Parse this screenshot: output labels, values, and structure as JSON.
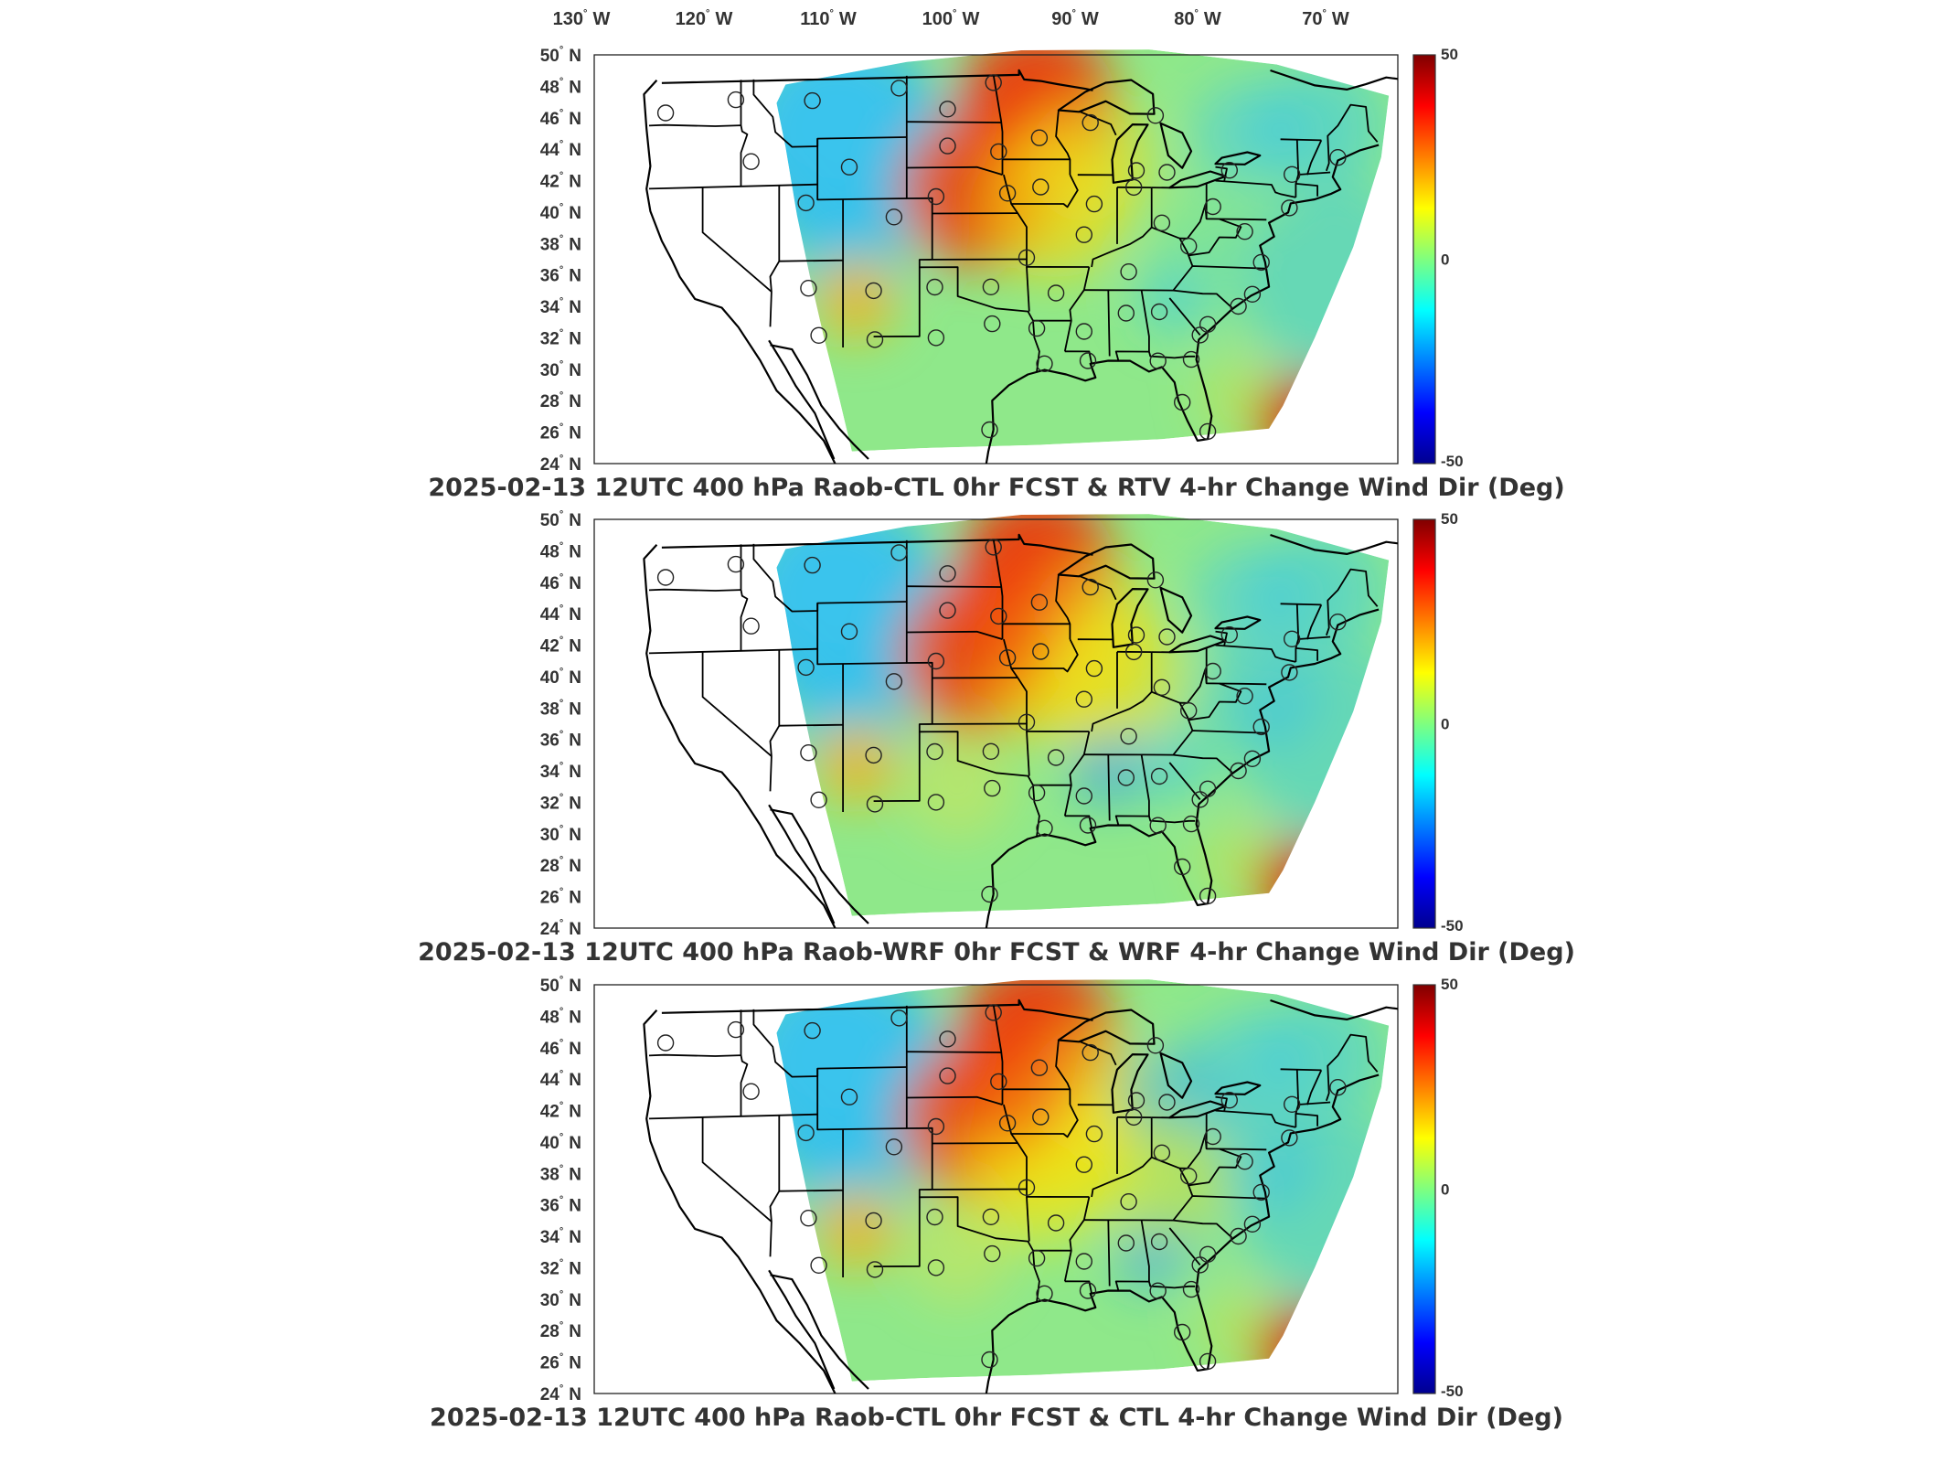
{
  "figure": {
    "lon_labels": [
      {
        "deg": "130",
        "hemi": "W"
      },
      {
        "deg": "120",
        "hemi": "W"
      },
      {
        "deg": "110",
        "hemi": "W"
      },
      {
        "deg": "100",
        "hemi": "W"
      },
      {
        "deg": "90",
        "hemi": "W"
      },
      {
        "deg": "80",
        "hemi": "W"
      },
      {
        "deg": "70",
        "hemi": "W"
      }
    ],
    "lat_labels": [
      {
        "deg": "50",
        "hemi": "N"
      },
      {
        "deg": "48",
        "hemi": "N"
      },
      {
        "deg": "46",
        "hemi": "N"
      },
      {
        "deg": "44",
        "hemi": "N"
      },
      {
        "deg": "42",
        "hemi": "N"
      },
      {
        "deg": "40",
        "hemi": "N"
      },
      {
        "deg": "38",
        "hemi": "N"
      },
      {
        "deg": "36",
        "hemi": "N"
      },
      {
        "deg": "34",
        "hemi": "N"
      },
      {
        "deg": "32",
        "hemi": "N"
      },
      {
        "deg": "30",
        "hemi": "N"
      },
      {
        "deg": "28",
        "hemi": "N"
      },
      {
        "deg": "26",
        "hemi": "N"
      },
      {
        "deg": "24",
        "hemi": "N"
      }
    ],
    "colorbar": {
      "max_label": "50",
      "mid_label": "0",
      "min_label": "-50",
      "colormap": [
        "#00008f",
        "#0000ff",
        "#00ffff",
        "#7fff7f",
        "#ffff00",
        "#ff0000",
        "#800000"
      ]
    },
    "panels": [
      {
        "title": "2025-02-13 12UTC 400 hPa Raob-CTL 0hr FCST & RTV 4-hr Change Wind Dir (Deg)"
      },
      {
        "title": "2025-02-13 12UTC 400 hPa Raob-WRF 0hr FCST & WRF 4-hr Change Wind Dir (Deg)"
      },
      {
        "title": "2025-02-13 12UTC 400 hPa Raob-CTL 0hr FCST & CTL 4-hr Change Wind Dir (Deg)"
      }
    ],
    "raob_stations": [
      [
        -122.9,
        47.0
      ],
      [
        -117.4,
        47.7
      ],
      [
        -111.4,
        47.5
      ],
      [
        -104.6,
        48.2
      ],
      [
        -100.8,
        46.8
      ],
      [
        -97.2,
        48.5
      ],
      [
        -116.2,
        43.6
      ],
      [
        -108.5,
        43.1
      ],
      [
        -100.8,
        44.4
      ],
      [
        -96.8,
        44.0
      ],
      [
        -93.6,
        44.9
      ],
      [
        -89.6,
        45.9
      ],
      [
        -84.5,
        46.4
      ],
      [
        -111.9,
        40.8
      ],
      [
        -105.0,
        39.8
      ],
      [
        -101.7,
        41.1
      ],
      [
        -96.1,
        41.3
      ],
      [
        -93.5,
        41.7
      ],
      [
        -89.3,
        40.6
      ],
      [
        -86.2,
        41.7
      ],
      [
        -83.6,
        42.7
      ],
      [
        -111.7,
        35.2
      ],
      [
        -106.6,
        35.0
      ],
      [
        -101.8,
        35.2
      ],
      [
        -97.4,
        35.2
      ],
      [
        -94.6,
        37.1
      ],
      [
        -92.3,
        34.8
      ],
      [
        -90.1,
        38.6
      ],
      [
        -86.6,
        36.2
      ],
      [
        -84.0,
        39.4
      ],
      [
        -81.9,
        37.9
      ],
      [
        -80.0,
        40.5
      ],
      [
        -77.5,
        38.9
      ],
      [
        -74.0,
        40.5
      ],
      [
        -110.9,
        32.1
      ],
      [
        -106.5,
        31.8
      ],
      [
        -101.7,
        31.9
      ],
      [
        -97.3,
        32.8
      ],
      [
        -93.8,
        32.5
      ],
      [
        -90.1,
        32.3
      ],
      [
        -86.8,
        33.5
      ],
      [
        -84.2,
        33.6
      ],
      [
        -81.0,
        32.1
      ],
      [
        -78.0,
        34.0
      ],
      [
        -76.2,
        36.9
      ],
      [
        -76.9,
        34.8
      ],
      [
        -97.5,
        25.9
      ],
      [
        -93.2,
        30.2
      ],
      [
        -89.8,
        30.4
      ],
      [
        -84.3,
        30.4
      ],
      [
        -81.7,
        30.5
      ],
      [
        -82.4,
        27.7
      ],
      [
        -80.4,
        25.8
      ],
      [
        -70.2,
        43.9
      ],
      [
        -73.8,
        42.7
      ],
      [
        -80.4,
        32.8
      ],
      [
        -86.0,
        42.8
      ],
      [
        -78.7,
        42.9
      ]
    ]
  }
}
